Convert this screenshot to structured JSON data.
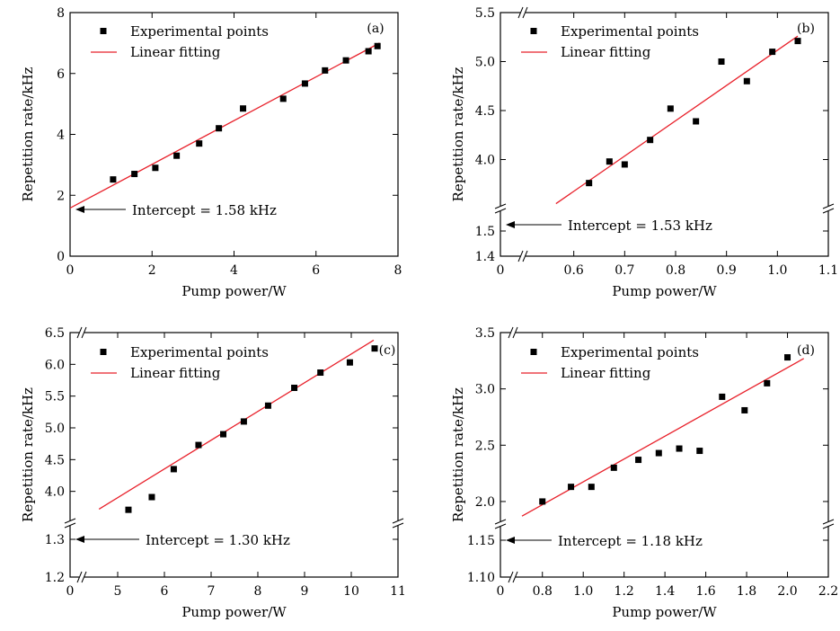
{
  "chart_data": [
    {
      "type": "scatter",
      "panel": "(a)",
      "xlabel": "Pump power/W",
      "ylabel": "Repetition rate/kHz",
      "xticks": [
        "0",
        "2",
        "4",
        "6",
        "8"
      ],
      "yticks": [
        "0",
        "2",
        "4",
        "6",
        "8"
      ],
      "legend": {
        "points": "Experimental points",
        "line": "Linear fitting"
      },
      "annotation": "Intercept = 1.58 kHz",
      "series": [
        {
          "name": "Experimental points",
          "x": [
            1.05,
            1.57,
            2.08,
            2.6,
            3.15,
            3.63,
            4.22,
            5.2,
            5.73,
            6.22,
            6.73,
            7.28,
            7.5
          ],
          "y": [
            2.52,
            2.7,
            2.9,
            3.3,
            3.7,
            4.2,
            4.85,
            5.17,
            5.67,
            6.1,
            6.43,
            6.73,
            6.9
          ]
        },
        {
          "name": "Linear fitting",
          "x": [
            0,
            7.55
          ],
          "y": [
            1.58,
            7.0
          ]
        }
      ]
    },
    {
      "type": "scatter",
      "panel": "(b)",
      "xlabel": "Pump power/W",
      "ylabel": "Repetition rate/kHz",
      "xticks": [
        "0",
        "0.6",
        "0.7",
        "0.8",
        "0.9",
        "1.0",
        "1.1"
      ],
      "yticks": [
        "1.4",
        "1.5",
        "4.0",
        "4.5",
        "5.0",
        "5.5"
      ],
      "legend": {
        "points": "Experimental points",
        "line": "Linear fitting"
      },
      "annotation": "Intercept = 1.53 kHz",
      "series": [
        {
          "name": "Experimental points",
          "x": [
            0.63,
            0.67,
            0.7,
            0.75,
            0.79,
            0.84,
            0.89,
            0.94,
            0.99,
            1.04
          ],
          "y": [
            3.76,
            3.98,
            3.95,
            4.2,
            4.52,
            4.39,
            5.0,
            4.8,
            5.1,
            5.21
          ]
        },
        {
          "name": "Linear fitting",
          "x": [
            0.565,
            1.04
          ],
          "y": [
            3.55,
            5.26
          ]
        }
      ]
    },
    {
      "type": "scatter",
      "panel": "(c)",
      "xlabel": "Pump power/W",
      "ylabel": "Repetition rate/kHz",
      "xticks": [
        "0",
        "5",
        "6",
        "7",
        "8",
        "9",
        "10",
        "11"
      ],
      "yticks": [
        "1.2",
        "1.3",
        "4.0",
        "4.5",
        "5.0",
        "5.5",
        "6.0",
        "6.5"
      ],
      "legend": {
        "points": "Experimental points",
        "line": "Linear fitting"
      },
      "annotation": "Intercept = 1.30 kHz",
      "series": [
        {
          "name": "Experimental points",
          "x": [
            5.23,
            5.73,
            6.2,
            6.73,
            7.26,
            7.7,
            8.22,
            8.78,
            9.34,
            9.97,
            10.5
          ],
          "y": [
            3.71,
            3.91,
            4.35,
            4.73,
            4.9,
            5.1,
            5.35,
            5.63,
            5.87,
            6.03,
            6.25
          ]
        },
        {
          "name": "Linear fitting",
          "x": [
            4.6,
            10.48
          ],
          "y": [
            3.72,
            6.38
          ]
        }
      ]
    },
    {
      "type": "scatter",
      "panel": "(d)",
      "xlabel": "Pump power/W",
      "ylabel": "Repetition rate/kHz",
      "xticks": [
        "0",
        "0.8",
        "1.0",
        "1.2",
        "1.4",
        "1.6",
        "1.8",
        "2.0",
        "2.2"
      ],
      "yticks": [
        "1.10",
        "1.15",
        "2.0",
        "2.5",
        "3.0",
        "3.5"
      ],
      "legend": {
        "points": "Experimental points",
        "line": "Linear fitting"
      },
      "annotation": "Intercept = 1.18 kHz",
      "series": [
        {
          "name": "Experimental points",
          "x": [
            0.8,
            0.94,
            1.04,
            1.15,
            1.27,
            1.37,
            1.47,
            1.57,
            1.68,
            1.79,
            1.9,
            2.0
          ],
          "y": [
            2.0,
            2.13,
            2.13,
            2.3,
            2.37,
            2.43,
            2.47,
            2.45,
            2.93,
            2.81,
            3.05,
            3.28
          ]
        },
        {
          "name": "Linear fitting",
          "x": [
            0.7,
            2.08
          ],
          "y": [
            1.87,
            3.27
          ]
        }
      ]
    }
  ]
}
